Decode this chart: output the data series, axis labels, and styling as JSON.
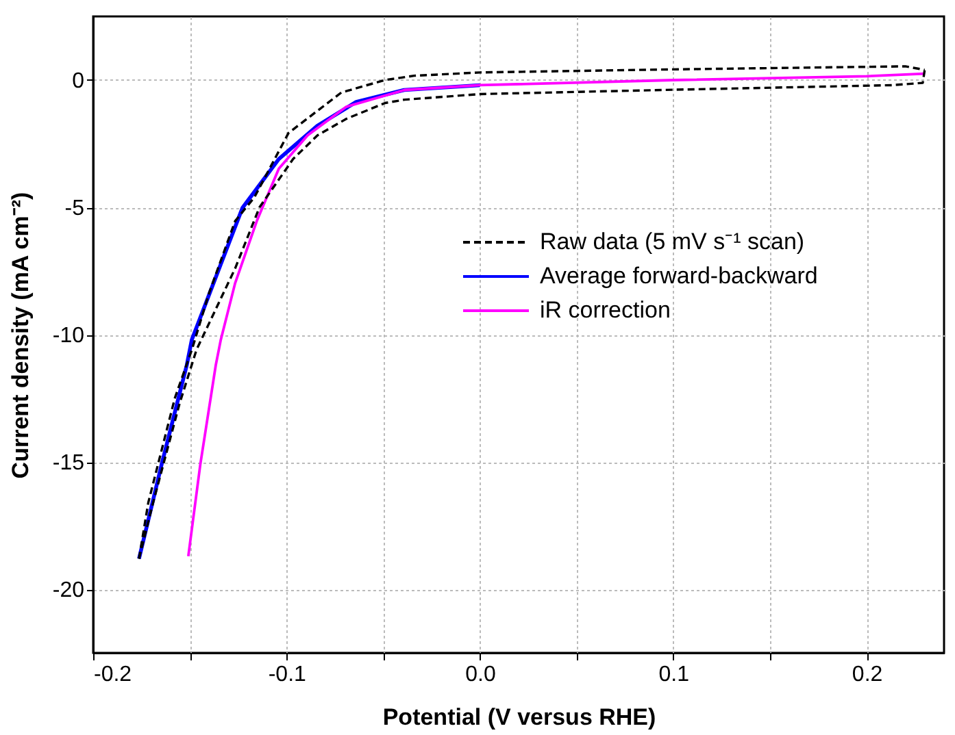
{
  "chart_data": {
    "type": "line",
    "xlabel": "Potential (V versus RHE)",
    "ylabel": "Current density (mA cm⁻²)",
    "xlim": [
      -0.2,
      0.24
    ],
    "ylim": [
      -22.5,
      2.5
    ],
    "xticks": [
      -0.2,
      {
        "value": -0.15,
        "label": null
      },
      -0.1,
      {
        "value": -0.05,
        "label": null
      },
      {
        "value": 0,
        "label": "0.0"
      },
      {
        "value": 0.05,
        "label": null
      },
      0.1,
      {
        "value": 0.15,
        "label": null
      },
      0.2
    ],
    "yticks": [
      -20,
      -15,
      -10,
      -5,
      0
    ],
    "grid": true,
    "legend": "right",
    "series": [
      {
        "name": "Raw data (5 mV s⁻¹ scan)",
        "color": "#000000",
        "line_style": "dashed",
        "x": [
          -0.1763,
          -0.1715,
          -0.1578,
          -0.149,
          -0.14,
          -0.1266,
          -0.1166,
          -0.099,
          -0.0717,
          -0.0492,
          -0.034,
          0.0,
          0.1,
          0.22,
          0.23
        ],
        "values": [
          -18.8,
          -16.6,
          -12.5,
          -10.6,
          -8.35,
          -5.54,
          -4.6,
          -2.08,
          -0.49,
          0.0,
          0.17,
          0.3,
          0.42,
          0.54,
          0.4
        ]
      },
      {
        "color": "#000000",
        "line_style": "dashed",
        "x": [
          -0.1763,
          -0.169,
          -0.1553,
          -0.1466,
          -0.1266,
          -0.114,
          -0.0966,
          -0.084,
          -0.069,
          -0.049,
          -0.039,
          0.0,
          0.1,
          0.213,
          0.229,
          0.23
        ],
        "values": [
          -18.8,
          -16.6,
          -12.7,
          -10.6,
          -7.4,
          -5.0,
          -3.1,
          -2.17,
          -1.52,
          -0.9,
          -0.77,
          -0.55,
          -0.38,
          -0.2,
          -0.11,
          0.4
        ]
      },
      {
        "name": "Average forward-backward",
        "color": "#0000ff",
        "line_style": "solid",
        "x": [
          -0.1763,
          -0.1646,
          -0.1516,
          -0.149,
          -0.134,
          -0.1228,
          -0.104,
          -0.0841,
          -0.064,
          -0.0392,
          0.0
        ],
        "values": [
          -18.8,
          -15.1,
          -11.2,
          -10.2,
          -7.23,
          -5.02,
          -3.1,
          -1.8,
          -0.86,
          -0.39,
          -0.2
        ]
      },
      {
        "name": "iR correction",
        "color": "#ff00ff",
        "line_style": "solid",
        "x": [
          -0.1508,
          -0.1446,
          -0.1366,
          -0.134,
          -0.1266,
          -0.1154,
          -0.104,
          -0.0891,
          -0.0691,
          -0.039,
          0.0,
          0.1,
          0.2,
          0.23
        ],
        "values": [
          -18.7,
          -15.1,
          -11.2,
          -10.2,
          -7.98,
          -5.54,
          -3.48,
          -2.17,
          -1.05,
          -0.39,
          -0.2,
          0.0,
          0.15,
          0.25
        ]
      }
    ]
  }
}
